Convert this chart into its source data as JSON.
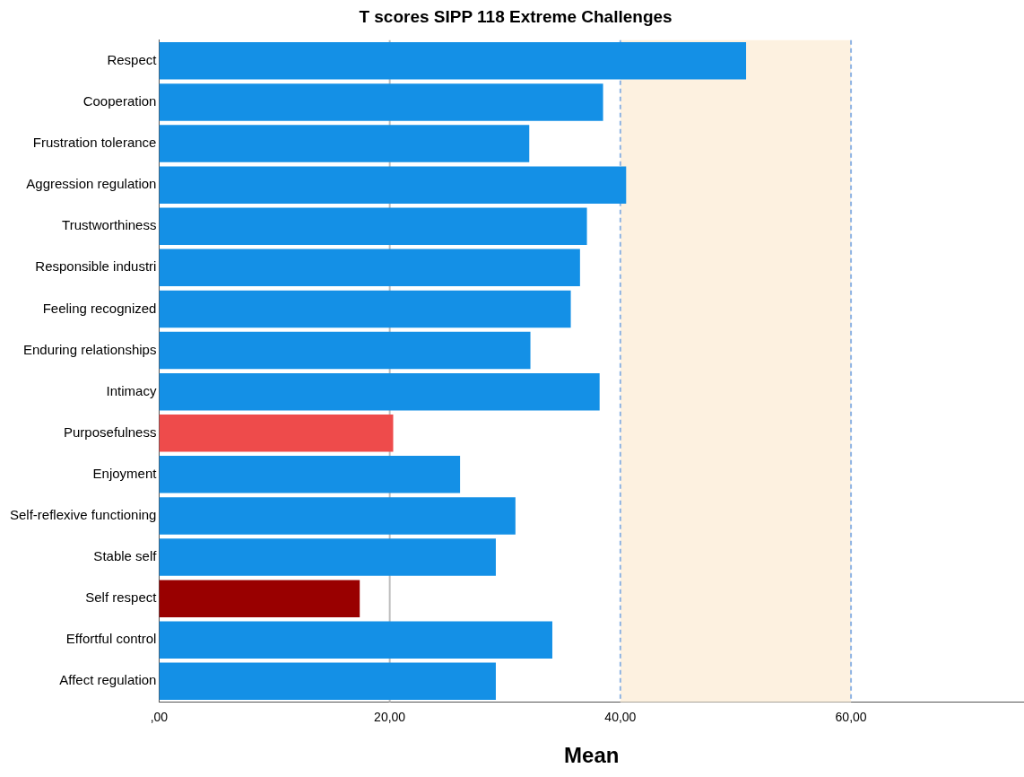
{
  "chart_data": {
    "type": "bar",
    "orientation": "horizontal",
    "title": "T scores SIPP 118 Extreme Challenges",
    "xlabel": "Mean",
    "categories": [
      "Respect",
      "Cooperation",
      "Frustration tolerance",
      "Aggression regulation",
      "Trustworthiness",
      "Responsible industri",
      "Feeling recognized",
      "Enduring relationships",
      "Intimacy",
      "Purposefulness",
      "Enjoyment",
      "Self-reflexive functioning",
      "Stable self",
      "Self respect",
      "Effortful control",
      "Affect regulation"
    ],
    "values": [
      50.9,
      38.5,
      32.1,
      40.5,
      37.1,
      36.5,
      35.7,
      32.2,
      38.2,
      20.3,
      26.1,
      30.9,
      29.2,
      17.4,
      34.1,
      29.2
    ],
    "colors": [
      "#1490e6",
      "#1490e6",
      "#1490e6",
      "#1490e6",
      "#1490e6",
      "#1490e6",
      "#1490e6",
      "#1490e6",
      "#1490e6",
      "#ee4b4b",
      "#1490e6",
      "#1490e6",
      "#1490e6",
      "#990000",
      "#1490e6",
      "#1490e6"
    ],
    "xlim": [
      0,
      75
    ],
    "xticks": [
      {
        "value": 0,
        "label": ",00"
      },
      {
        "value": 20,
        "label": "20,00"
      },
      {
        "value": 40,
        "label": "40,00"
      },
      {
        "value": 60,
        "label": "60,00"
      }
    ],
    "grid": false,
    "legend": false,
    "bands": [
      {
        "axis": "x",
        "from": 40,
        "to": 60,
        "color": "#fdf1e0"
      }
    ],
    "ref_lines": [
      {
        "axis": "x",
        "value": 20,
        "color": "#bdbdbd",
        "line_style": "solid"
      },
      {
        "axis": "x",
        "value": 40,
        "color": "#8fb4e3",
        "line_style": "dashed"
      },
      {
        "axis": "x",
        "value": 60,
        "color": "#8fb4e3",
        "line_style": "dashed"
      }
    ]
  }
}
